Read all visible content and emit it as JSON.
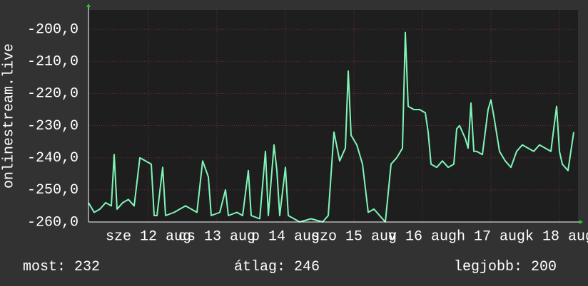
{
  "chart_data": {
    "type": "line",
    "y_label": "onlinestream.live",
    "color": "#80f5b8",
    "grid": true,
    "xlim": [
      0,
      171.5
    ],
    "ylim": [
      -260,
      -194
    ],
    "yticks": [
      {
        "value": -260,
        "label": "-260,0"
      },
      {
        "value": -250,
        "label": "-250,0"
      },
      {
        "value": -240,
        "label": "-240,0"
      },
      {
        "value": -230,
        "label": "-230,0"
      },
      {
        "value": -220,
        "label": "-220,0"
      },
      {
        "value": -210,
        "label": "-210,0"
      },
      {
        "value": -200,
        "label": "-200,0"
      }
    ],
    "xticks": [
      {
        "value": 21,
        "label": "sze 12 aug"
      },
      {
        "value": 45,
        "label": "cs 13 aug"
      },
      {
        "value": 69,
        "label": "p 14 aug"
      },
      {
        "value": 93,
        "label": "szo 15 aug"
      },
      {
        "value": 117,
        "label": "v 16 aug"
      },
      {
        "value": 141,
        "label": "h 17 aug"
      },
      {
        "value": 165,
        "label": "k 18 aug"
      }
    ],
    "x": [
      0,
      2,
      4,
      6,
      8,
      9,
      10,
      12,
      14,
      16,
      18,
      20,
      22,
      23,
      24,
      26,
      27,
      30,
      32,
      34,
      36,
      38,
      40,
      42,
      43,
      46,
      48,
      49,
      52,
      54,
      56,
      57,
      60,
      62,
      63,
      65,
      66,
      67,
      69,
      70,
      74,
      78,
      82,
      84,
      86,
      88,
      90,
      91,
      92,
      94,
      96,
      98,
      100,
      102,
      104,
      106,
      108,
      110,
      111,
      112,
      114,
      116,
      118,
      119,
      120,
      122,
      124,
      126,
      128,
      129,
      130,
      132,
      133,
      134,
      135,
      136,
      138,
      140,
      141,
      142,
      144,
      146,
      148,
      150,
      152,
      154,
      156,
      158,
      160,
      162,
      164,
      165,
      166,
      168,
      170
    ],
    "values": [
      -254,
      -257,
      -256,
      -254,
      -255,
      -239,
      -256,
      -254,
      -253,
      -255,
      -240,
      -241,
      -242,
      -258,
      -258,
      -243,
      -258,
      -257,
      -256,
      -255,
      -256,
      -257,
      -241,
      -246,
      -258,
      -257,
      -250,
      -258,
      -257,
      -258,
      -244,
      -258,
      -259,
      -238,
      -258,
      -236,
      -244,
      -258,
      -243,
      -258,
      -260,
      -259,
      -260,
      -258,
      -232,
      -241,
      -237,
      -213,
      -233,
      -236,
      -242,
      -257,
      -256,
      -258,
      -260,
      -242,
      -240,
      -237,
      -201,
      -224,
      -225,
      -225,
      -226,
      -232,
      -242,
      -243,
      -241,
      -243,
      -242,
      -231,
      -230,
      -234,
      -237,
      -223,
      -238,
      -238,
      -239,
      -225,
      -222,
      -227,
      -238,
      -241,
      -243,
      -238,
      -236,
      -237,
      -238,
      -236,
      -237,
      -238,
      -224,
      -238,
      -242,
      -244,
      -232
    ],
    "footer": [
      {
        "label": "most:",
        "value": 232
      },
      {
        "label": "átlag:",
        "value": 246
      },
      {
        "label": "legjobb:",
        "value": 200
      }
    ]
  }
}
